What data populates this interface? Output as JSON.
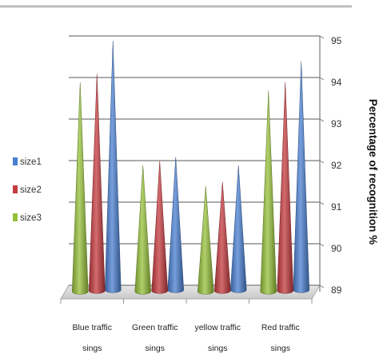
{
  "chart_data": {
    "type": "bar",
    "style": "3d-cone",
    "categories": [
      [
        "Blue traffic",
        "sings"
      ],
      [
        "Green traffic",
        "sings"
      ],
      [
        "yellow traffic",
        "sings"
      ],
      [
        "Red traffic",
        "sings"
      ]
    ],
    "series": [
      {
        "name": "size1",
        "color": "#4a7fd0",
        "values": [
          95,
          92.2,
          92,
          94.5
        ]
      },
      {
        "name": "size2",
        "color": "#c43a3e",
        "values": [
          94.2,
          92.1,
          91.6,
          94
        ]
      },
      {
        "name": "size3",
        "color": "#96c03a",
        "values": [
          94,
          92,
          91.5,
          93.8
        ]
      }
    ],
    "bar_order_front_to_back": [
      "size3",
      "size2",
      "size1"
    ],
    "ylabel": "Percentage of recognition %",
    "ylim": [
      89,
      95
    ],
    "yticks": [
      89,
      90,
      91,
      92,
      93,
      94,
      95
    ],
    "y_axis_side": "right",
    "grid": true,
    "legend_position": "left"
  }
}
